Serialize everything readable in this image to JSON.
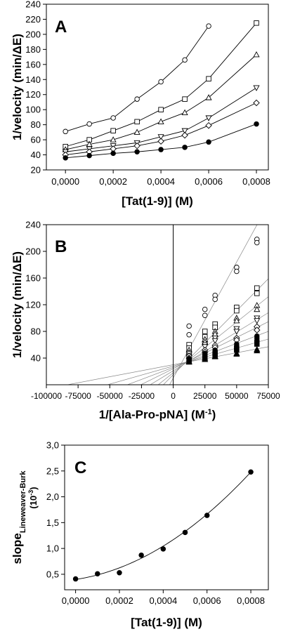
{
  "chart_data": [
    {
      "type": "line",
      "panel_label": "A",
      "xlabel": "[Tat(1-9)] (M)",
      "ylabel": "1/velocity (min/ΔE)",
      "xlim": [
        -8e-05,
        0.00085
      ],
      "ylim": [
        20,
        240
      ],
      "xticks": [
        0,
        0.0002,
        0.0004,
        0.0006,
        0.0008
      ],
      "xtick_labels": [
        "0,0000",
        "0,0002",
        "0,0004",
        "0,0006",
        "0,0008"
      ],
      "yticks": [
        20,
        40,
        60,
        80,
        100,
        120,
        140,
        160,
        180,
        200,
        220,
        240
      ],
      "ytick_labels": [
        "20",
        "40",
        "60",
        "80",
        "100",
        "120",
        "140",
        "160",
        "180",
        "200",
        "220",
        "240"
      ],
      "series": [
        {
          "marker": "circle-open",
          "x": [
            0,
            0.0001,
            0.0002,
            0.0003,
            0.0004,
            0.0005,
            0.0006
          ],
          "y": [
            71,
            81,
            89,
            114,
            137,
            166,
            211
          ]
        },
        {
          "marker": "square-open",
          "x": [
            0,
            0.0001,
            0.0002,
            0.0003,
            0.0004,
            0.0005,
            0.0006,
            0.0008
          ],
          "y": [
            51,
            60,
            72,
            84,
            100,
            114,
            141,
            215
          ]
        },
        {
          "marker": "triangle-up-open",
          "x": [
            0,
            0.0001,
            0.0002,
            0.0003,
            0.0004,
            0.0005,
            0.0006,
            0.0008
          ],
          "y": [
            47,
            54,
            60,
            70,
            84,
            96,
            116,
            173
          ]
        },
        {
          "marker": "triangle-down-open",
          "x": [
            0,
            0.0001,
            0.0002,
            0.0003,
            0.0004,
            0.0005,
            0.0006,
            0.0008
          ],
          "y": [
            44,
            48,
            52,
            56,
            64,
            72,
            89,
            129
          ]
        },
        {
          "marker": "diamond-open",
          "x": [
            0,
            0.0001,
            0.0002,
            0.0003,
            0.0004,
            0.0005,
            0.0006,
            0.0008
          ],
          "y": [
            40,
            44,
            48,
            52,
            58,
            66,
            79,
            109
          ]
        },
        {
          "marker": "circle-filled",
          "x": [
            0,
            0.0001,
            0.0002,
            0.0003,
            0.0004,
            0.0005,
            0.0006,
            0.0008
          ],
          "y": [
            36,
            39,
            42,
            44,
            47,
            50,
            57,
            81
          ]
        }
      ]
    },
    {
      "type": "scatter",
      "panel_label": "B",
      "xlabel": "1/[Ala-Pro-pNA] (M",
      "xlabel_sup": "-1",
      "xlabel_suffix": ")",
      "ylabel": "1/velocity (min/ΔE)",
      "xlim": [
        -100000,
        75000
      ],
      "ylim": [
        0,
        240
      ],
      "xticks": [
        -100000,
        -75000,
        -50000,
        -25000,
        0,
        25000,
        50000,
        75000
      ],
      "xtick_labels": [
        "-100000",
        "-75000",
        "-50000",
        "-25000",
        "0",
        "25000",
        "50000",
        "75000"
      ],
      "yticks": [
        40,
        80,
        120,
        160,
        200,
        240
      ],
      "ytick_labels": [
        "40",
        "80",
        "120",
        "160",
        "200",
        "240"
      ],
      "fit_lines": [
        {
          "intercept": 10,
          "slope": 0.00348
        },
        {
          "intercept": 15,
          "slope": 0.00192
        },
        {
          "intercept": 18,
          "slope": 0.00152
        },
        {
          "intercept": 21,
          "slope": 0.00116
        },
        {
          "intercept": 24,
          "slope": 0.00094
        },
        {
          "intercept": 26,
          "slope": 0.00072
        },
        {
          "intercept": 28,
          "slope": 0.00054
        },
        {
          "intercept": 30,
          "slope": 0.00036
        }
      ],
      "series": [
        {
          "marker": "circle-open",
          "x": [
            12500,
            12500,
            25000,
            25000,
            33000,
            33000,
            50000,
            50000,
            66000,
            66000
          ],
          "y": [
            88,
            75,
            113,
            104,
            134,
            128,
            176,
            170,
            218,
            213
          ]
        },
        {
          "marker": "square-open",
          "x": [
            12500,
            12500,
            25000,
            25000,
            33000,
            33000,
            50000,
            50000,
            66000,
            66000
          ],
          "y": [
            60,
            55,
            80,
            72,
            91,
            86,
            116,
            111,
            145,
            137
          ]
        },
        {
          "marker": "triangle-up-open",
          "x": [
            12500,
            12500,
            25000,
            25000,
            33000,
            33000,
            50000,
            50000,
            66000,
            66000
          ],
          "y": [
            52,
            48,
            68,
            64,
            80,
            76,
            100,
            96,
            119,
            113
          ]
        },
        {
          "marker": "triangle-down-open",
          "x": [
            12500,
            12500,
            25000,
            25000,
            33000,
            33000,
            50000,
            50000,
            66000,
            66000
          ],
          "y": [
            47,
            44,
            60,
            57,
            70,
            66,
            84,
            80,
            100,
            96
          ]
        },
        {
          "marker": "diamond-open",
          "x": [
            12500,
            12500,
            25000,
            25000,
            33000,
            33000,
            50000,
            50000,
            66000,
            66000
          ],
          "y": [
            43,
            40,
            52,
            49,
            59,
            56,
            70,
            67,
            87,
            82
          ]
        },
        {
          "marker": "circle-filled",
          "x": [
            12500,
            12500,
            25000,
            25000,
            33000,
            33000,
            50000,
            50000,
            66000,
            66000
          ],
          "y": [
            39,
            37,
            47,
            45,
            52,
            50,
            61,
            58,
            73,
            70
          ]
        },
        {
          "marker": "square-filled",
          "x": [
            12500,
            12500,
            25000,
            25000,
            33000,
            33000,
            50000,
            50000,
            66000,
            66000
          ],
          "y": [
            37,
            35,
            43,
            41,
            47,
            45,
            55,
            52,
            64,
            61
          ]
        },
        {
          "marker": "triangle-up-filled",
          "x": [
            12500,
            12500,
            25000,
            25000,
            33000,
            33000,
            50000,
            50000,
            66000,
            66000
          ],
          "y": [
            35,
            34,
            40,
            38,
            43,
            42,
            47,
            46,
            53,
            51
          ]
        }
      ]
    },
    {
      "type": "scatter",
      "panel_label": "C",
      "xlabel": "[Tat(1-9)] (M)",
      "ylabel_main": "slope",
      "ylabel_sub": "Lineweaver-Burk",
      "ylabel_unit": "(10",
      "ylabel_unit_sup": "-3",
      "ylabel_unit_suffix": ")",
      "xlim": [
        -5e-05,
        0.00088
      ],
      "ylim": [
        0.2,
        3.0
      ],
      "xticks": [
        0,
        0.0002,
        0.0004,
        0.0006,
        0.0008
      ],
      "xtick_labels": [
        "0,0000",
        "0,0002",
        "0,0004",
        "0,0006",
        "0,0008"
      ],
      "yticks": [
        0.5,
        1.0,
        1.5,
        2.0,
        2.5,
        3.0
      ],
      "ytick_labels": [
        "0,5",
        "1,0",
        "1,5",
        "2,0",
        "2,5",
        "3,0"
      ],
      "points": {
        "x": [
          0,
          0.0001,
          0.0002,
          0.0003,
          0.0004,
          0.0005,
          0.0006,
          0.0008
        ],
        "y": [
          0.41,
          0.51,
          0.53,
          0.87,
          0.99,
          1.31,
          1.64,
          2.48
        ]
      },
      "fit_curve": {
        "a": 0.4,
        "b": 630,
        "c": 2460000
      }
    }
  ]
}
